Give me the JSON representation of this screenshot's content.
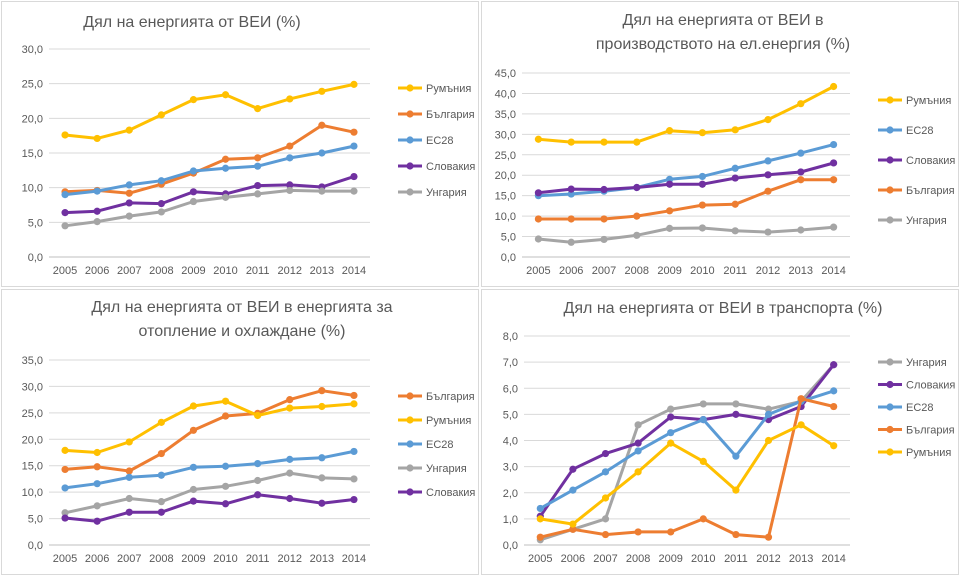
{
  "chart_data": [
    {
      "type": "line",
      "title": "Дял на енергията от ВЕИ (%)",
      "x": [
        "2005",
        "2006",
        "2007",
        "2008",
        "2009",
        "2010",
        "2011",
        "2012",
        "2013",
        "2014"
      ],
      "ylim": [
        0,
        30
      ],
      "ytick_step": 5,
      "yticks": [
        "0,0",
        "5,0",
        "10,0",
        "15,0",
        "20,0",
        "25,0",
        "30,0"
      ],
      "grid": true,
      "legend_position": "right",
      "series": [
        {
          "name": "Румъния",
          "color": "#FFC000",
          "values": [
            17.6,
            17.1,
            18.3,
            20.5,
            22.7,
            23.4,
            21.4,
            22.8,
            23.9,
            24.9
          ]
        },
        {
          "name": "България",
          "color": "#ED7D31",
          "values": [
            9.4,
            9.6,
            9.2,
            10.5,
            12.1,
            14.1,
            14.3,
            16.0,
            19.0,
            18.0
          ]
        },
        {
          "name": "ЕС28",
          "color": "#5B9BD5",
          "values": [
            9.0,
            9.5,
            10.4,
            11.0,
            12.4,
            12.8,
            13.1,
            14.3,
            15.0,
            16.0
          ]
        },
        {
          "name": "Словакия",
          "color": "#7030A0",
          "values": [
            6.4,
            6.6,
            7.8,
            7.7,
            9.4,
            9.1,
            10.3,
            10.4,
            10.1,
            11.6
          ]
        },
        {
          "name": "Унгария",
          "color": "#A5A5A5",
          "values": [
            4.5,
            5.1,
            5.9,
            6.5,
            8.0,
            8.6,
            9.1,
            9.6,
            9.5,
            9.5
          ]
        }
      ]
    },
    {
      "type": "line",
      "title": "Дял на енергията от ВЕИ в производството на ел.енергия (%)",
      "title_lines": [
        "Дял на енергията от ВЕИ в",
        "производството на ел.енергия (%)"
      ],
      "x": [
        "2005",
        "2006",
        "2007",
        "2008",
        "2009",
        "2010",
        "2011",
        "2012",
        "2013",
        "2014"
      ],
      "ylim": [
        0,
        45
      ],
      "ytick_step": 5,
      "yticks": [
        "0,0",
        "5,0",
        "10,0",
        "15,0",
        "20,0",
        "25,0",
        "30,0",
        "35,0",
        "40,0",
        "45,0"
      ],
      "grid": true,
      "legend_position": "right",
      "series": [
        {
          "name": "Румъния",
          "color": "#FFC000",
          "values": [
            28.8,
            28.1,
            28.1,
            28.1,
            30.9,
            30.4,
            31.1,
            33.6,
            37.5,
            41.7
          ]
        },
        {
          "name": "ЕС28",
          "color": "#5B9BD5",
          "values": [
            15.0,
            15.4,
            16.1,
            17.0,
            19.0,
            19.7,
            21.7,
            23.5,
            25.4,
            27.5
          ]
        },
        {
          "name": "Словакия",
          "color": "#7030A0",
          "values": [
            15.7,
            16.6,
            16.5,
            17.0,
            17.8,
            17.8,
            19.3,
            20.1,
            20.8,
            23.0
          ]
        },
        {
          "name": "България",
          "color": "#ED7D31",
          "values": [
            9.3,
            9.3,
            9.3,
            10.0,
            11.3,
            12.7,
            12.9,
            16.1,
            18.9,
            18.9
          ]
        },
        {
          "name": "Унгария",
          "color": "#A5A5A5",
          "values": [
            4.4,
            3.6,
            4.3,
            5.3,
            7.0,
            7.1,
            6.4,
            6.1,
            6.6,
            7.3
          ]
        }
      ]
    },
    {
      "type": "line",
      "title": "Дял на енергията от ВЕИ в енергията за отопление и охлаждане (%)",
      "title_lines": [
        "Дял на енергията от ВЕИ в енергията за",
        "отопление и охлаждане (%)"
      ],
      "x": [
        "2005",
        "2006",
        "2007",
        "2008",
        "2009",
        "2010",
        "2011",
        "2012",
        "2013",
        "2014"
      ],
      "ylim": [
        0,
        35
      ],
      "ytick_step": 5,
      "yticks": [
        "0,0",
        "5,0",
        "10,0",
        "15,0",
        "20,0",
        "25,0",
        "30,0",
        "35,0"
      ],
      "grid": true,
      "legend_position": "right",
      "series": [
        {
          "name": "България",
          "color": "#ED7D31",
          "values": [
            14.3,
            14.8,
            14.0,
            17.3,
            21.7,
            24.4,
            24.9,
            27.5,
            29.2,
            28.3
          ]
        },
        {
          "name": "Румъния",
          "color": "#FFC000",
          "values": [
            17.9,
            17.5,
            19.5,
            23.2,
            26.3,
            27.2,
            24.5,
            25.9,
            26.2,
            26.7
          ]
        },
        {
          "name": "ЕС28",
          "color": "#5B9BD5",
          "values": [
            10.8,
            11.6,
            12.8,
            13.2,
            14.7,
            14.9,
            15.4,
            16.2,
            16.5,
            17.7
          ]
        },
        {
          "name": "Унгария",
          "color": "#A5A5A5",
          "values": [
            6.1,
            7.4,
            8.8,
            8.2,
            10.5,
            11.1,
            12.2,
            13.6,
            12.7,
            12.5
          ]
        },
        {
          "name": "Словакия",
          "color": "#7030A0",
          "values": [
            5.1,
            4.5,
            6.2,
            6.2,
            8.3,
            7.8,
            9.5,
            8.8,
            7.9,
            8.6
          ]
        }
      ]
    },
    {
      "type": "line",
      "title": "Дял на енергията от ВЕИ в транспорта (%)",
      "x": [
        "2005",
        "2006",
        "2007",
        "2008",
        "2009",
        "2010",
        "2011",
        "2012",
        "2013",
        "2014"
      ],
      "ylim": [
        0,
        8
      ],
      "ytick_step": 1,
      "yticks": [
        "0,0",
        "1,0",
        "2,0",
        "3,0",
        "4,0",
        "5,0",
        "6,0",
        "7,0",
        "8,0"
      ],
      "grid": true,
      "legend_position": "right",
      "series": [
        {
          "name": "Унгария",
          "color": "#A5A5A5",
          "values": [
            0.2,
            0.6,
            1.0,
            4.6,
            5.2,
            5.4,
            5.4,
            5.2,
            5.5,
            6.9
          ]
        },
        {
          "name": "Словакия",
          "color": "#7030A0",
          "values": [
            1.1,
            2.9,
            3.5,
            3.9,
            4.9,
            4.8,
            5.0,
            4.8,
            5.3,
            6.9
          ]
        },
        {
          "name": "ЕС28",
          "color": "#5B9BD5",
          "values": [
            1.4,
            2.1,
            2.8,
            3.6,
            4.3,
            4.8,
            3.4,
            5.0,
            5.5,
            5.9
          ]
        },
        {
          "name": "България",
          "color": "#ED7D31",
          "values": [
            0.3,
            0.6,
            0.4,
            0.5,
            0.5,
            1.0,
            0.4,
            0.3,
            5.6,
            5.3
          ]
        },
        {
          "name": "Румъния",
          "color": "#FFC000",
          "values": [
            1.0,
            0.8,
            1.8,
            2.8,
            3.9,
            3.2,
            2.1,
            4.0,
            4.6,
            3.8
          ]
        }
      ]
    }
  ]
}
